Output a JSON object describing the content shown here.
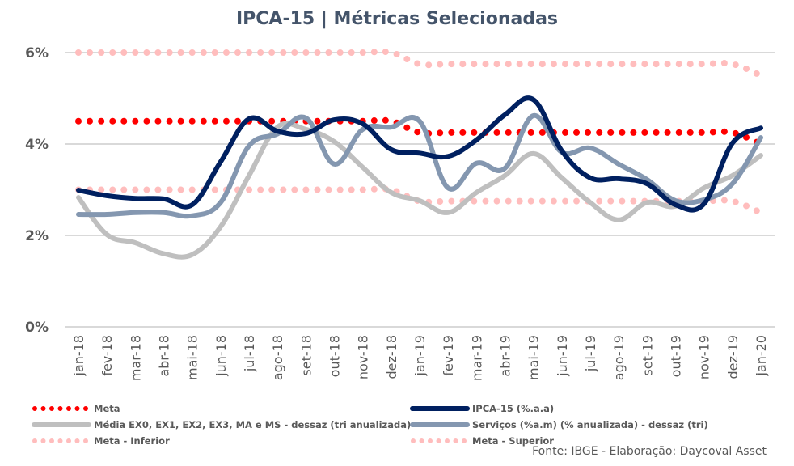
{
  "chart_data": {
    "type": "line",
    "title": "IPCA-15 | Métricas Selecionadas",
    "xlabel": "",
    "ylabel": "",
    "ylim": [
      0,
      6
    ],
    "yticks": [
      0,
      2,
      4,
      6
    ],
    "ytick_labels": [
      "0%",
      "2%",
      "4%",
      "6%"
    ],
    "grid": true,
    "legend_position": "bottom",
    "categories": [
      "jan-18",
      "fev-18",
      "mar-18",
      "abr-18",
      "mai-18",
      "jun-18",
      "jul-18",
      "ago-18",
      "set-18",
      "out-18",
      "nov-18",
      "dez-18",
      "jan-19",
      "fev-19",
      "mar-19",
      "abr-19",
      "mai-19",
      "jun-19",
      "jul-19",
      "ago-19",
      "set-19",
      "out-19",
      "nov-19",
      "dez-19",
      "jan-20"
    ],
    "series": [
      {
        "name": "Meta - Inferior",
        "style": "dotted",
        "color": "#FFBDBD",
        "values": [
          3.0,
          3.0,
          3.0,
          3.0,
          3.0,
          3.0,
          3.0,
          3.0,
          3.0,
          3.0,
          3.0,
          3.0,
          2.75,
          2.75,
          2.75,
          2.75,
          2.75,
          2.75,
          2.75,
          2.75,
          2.75,
          2.75,
          2.75,
          2.75,
          2.5
        ]
      },
      {
        "name": "Meta - Superior",
        "style": "dotted",
        "color": "#FFBDBD",
        "values": [
          6.0,
          6.0,
          6.0,
          6.0,
          6.0,
          6.0,
          6.0,
          6.0,
          6.0,
          6.0,
          6.0,
          6.0,
          5.75,
          5.75,
          5.75,
          5.75,
          5.75,
          5.75,
          5.75,
          5.75,
          5.75,
          5.75,
          5.75,
          5.75,
          5.5
        ]
      },
      {
        "name": "Meta",
        "style": "dotted",
        "color": "#FF0000",
        "values": [
          4.5,
          4.5,
          4.5,
          4.5,
          4.5,
          4.5,
          4.5,
          4.5,
          4.5,
          4.5,
          4.5,
          4.5,
          4.25,
          4.25,
          4.25,
          4.25,
          4.25,
          4.25,
          4.25,
          4.25,
          4.25,
          4.25,
          4.25,
          4.25,
          4.0
        ]
      },
      {
        "name": "Média EX0, EX1, EX2, EX3, MA e MS - dessaz (tri anualizada)",
        "style": "solid",
        "color": "#BFBFBF",
        "values": [
          2.83,
          2.02,
          1.84,
          1.6,
          1.58,
          2.19,
          3.31,
          4.37,
          4.32,
          4.05,
          3.49,
          2.94,
          2.76,
          2.5,
          2.94,
          3.31,
          3.79,
          3.26,
          2.72,
          2.34,
          2.72,
          2.64,
          3.04,
          3.31,
          3.75
        ]
      },
      {
        "name": "Serviços (%a.m) (% anualizada) - dessaz (tri)",
        "style": "solid",
        "color": "#8497B0",
        "values": [
          2.46,
          2.46,
          2.5,
          2.5,
          2.43,
          2.72,
          3.96,
          4.22,
          4.57,
          3.56,
          4.32,
          4.37,
          4.5,
          3.04,
          3.58,
          3.47,
          4.62,
          3.82,
          3.91,
          3.56,
          3.22,
          2.76,
          2.78,
          3.13,
          4.14
        ]
      },
      {
        "name": "IPCA-15 (%.a.a)",
        "style": "solid",
        "color": "#002060",
        "values": [
          2.99,
          2.87,
          2.81,
          2.8,
          2.67,
          3.61,
          4.55,
          4.28,
          4.23,
          4.53,
          4.44,
          3.88,
          3.8,
          3.73,
          4.09,
          4.64,
          4.97,
          3.85,
          3.26,
          3.24,
          3.13,
          2.67,
          2.69,
          4.02,
          4.35
        ]
      }
    ],
    "legend": [
      {
        "name": "Meta",
        "series": 2
      },
      {
        "name": "IPCA-15 (%.a.a)",
        "series": 5
      },
      {
        "name": "Média EX0, EX1, EX2, EX3, MA e MS - dessaz (tri anualizada)",
        "series": 3
      },
      {
        "name": "Serviços (%a.m) (% anualizada) - dessaz (tri)",
        "series": 4
      },
      {
        "name": "Meta - Inferior",
        "series": 0
      },
      {
        "name": "Meta - Superior",
        "series": 1
      }
    ],
    "source_note": "Fonte: IBGE - Elaboração: Daycoval Asset"
  }
}
